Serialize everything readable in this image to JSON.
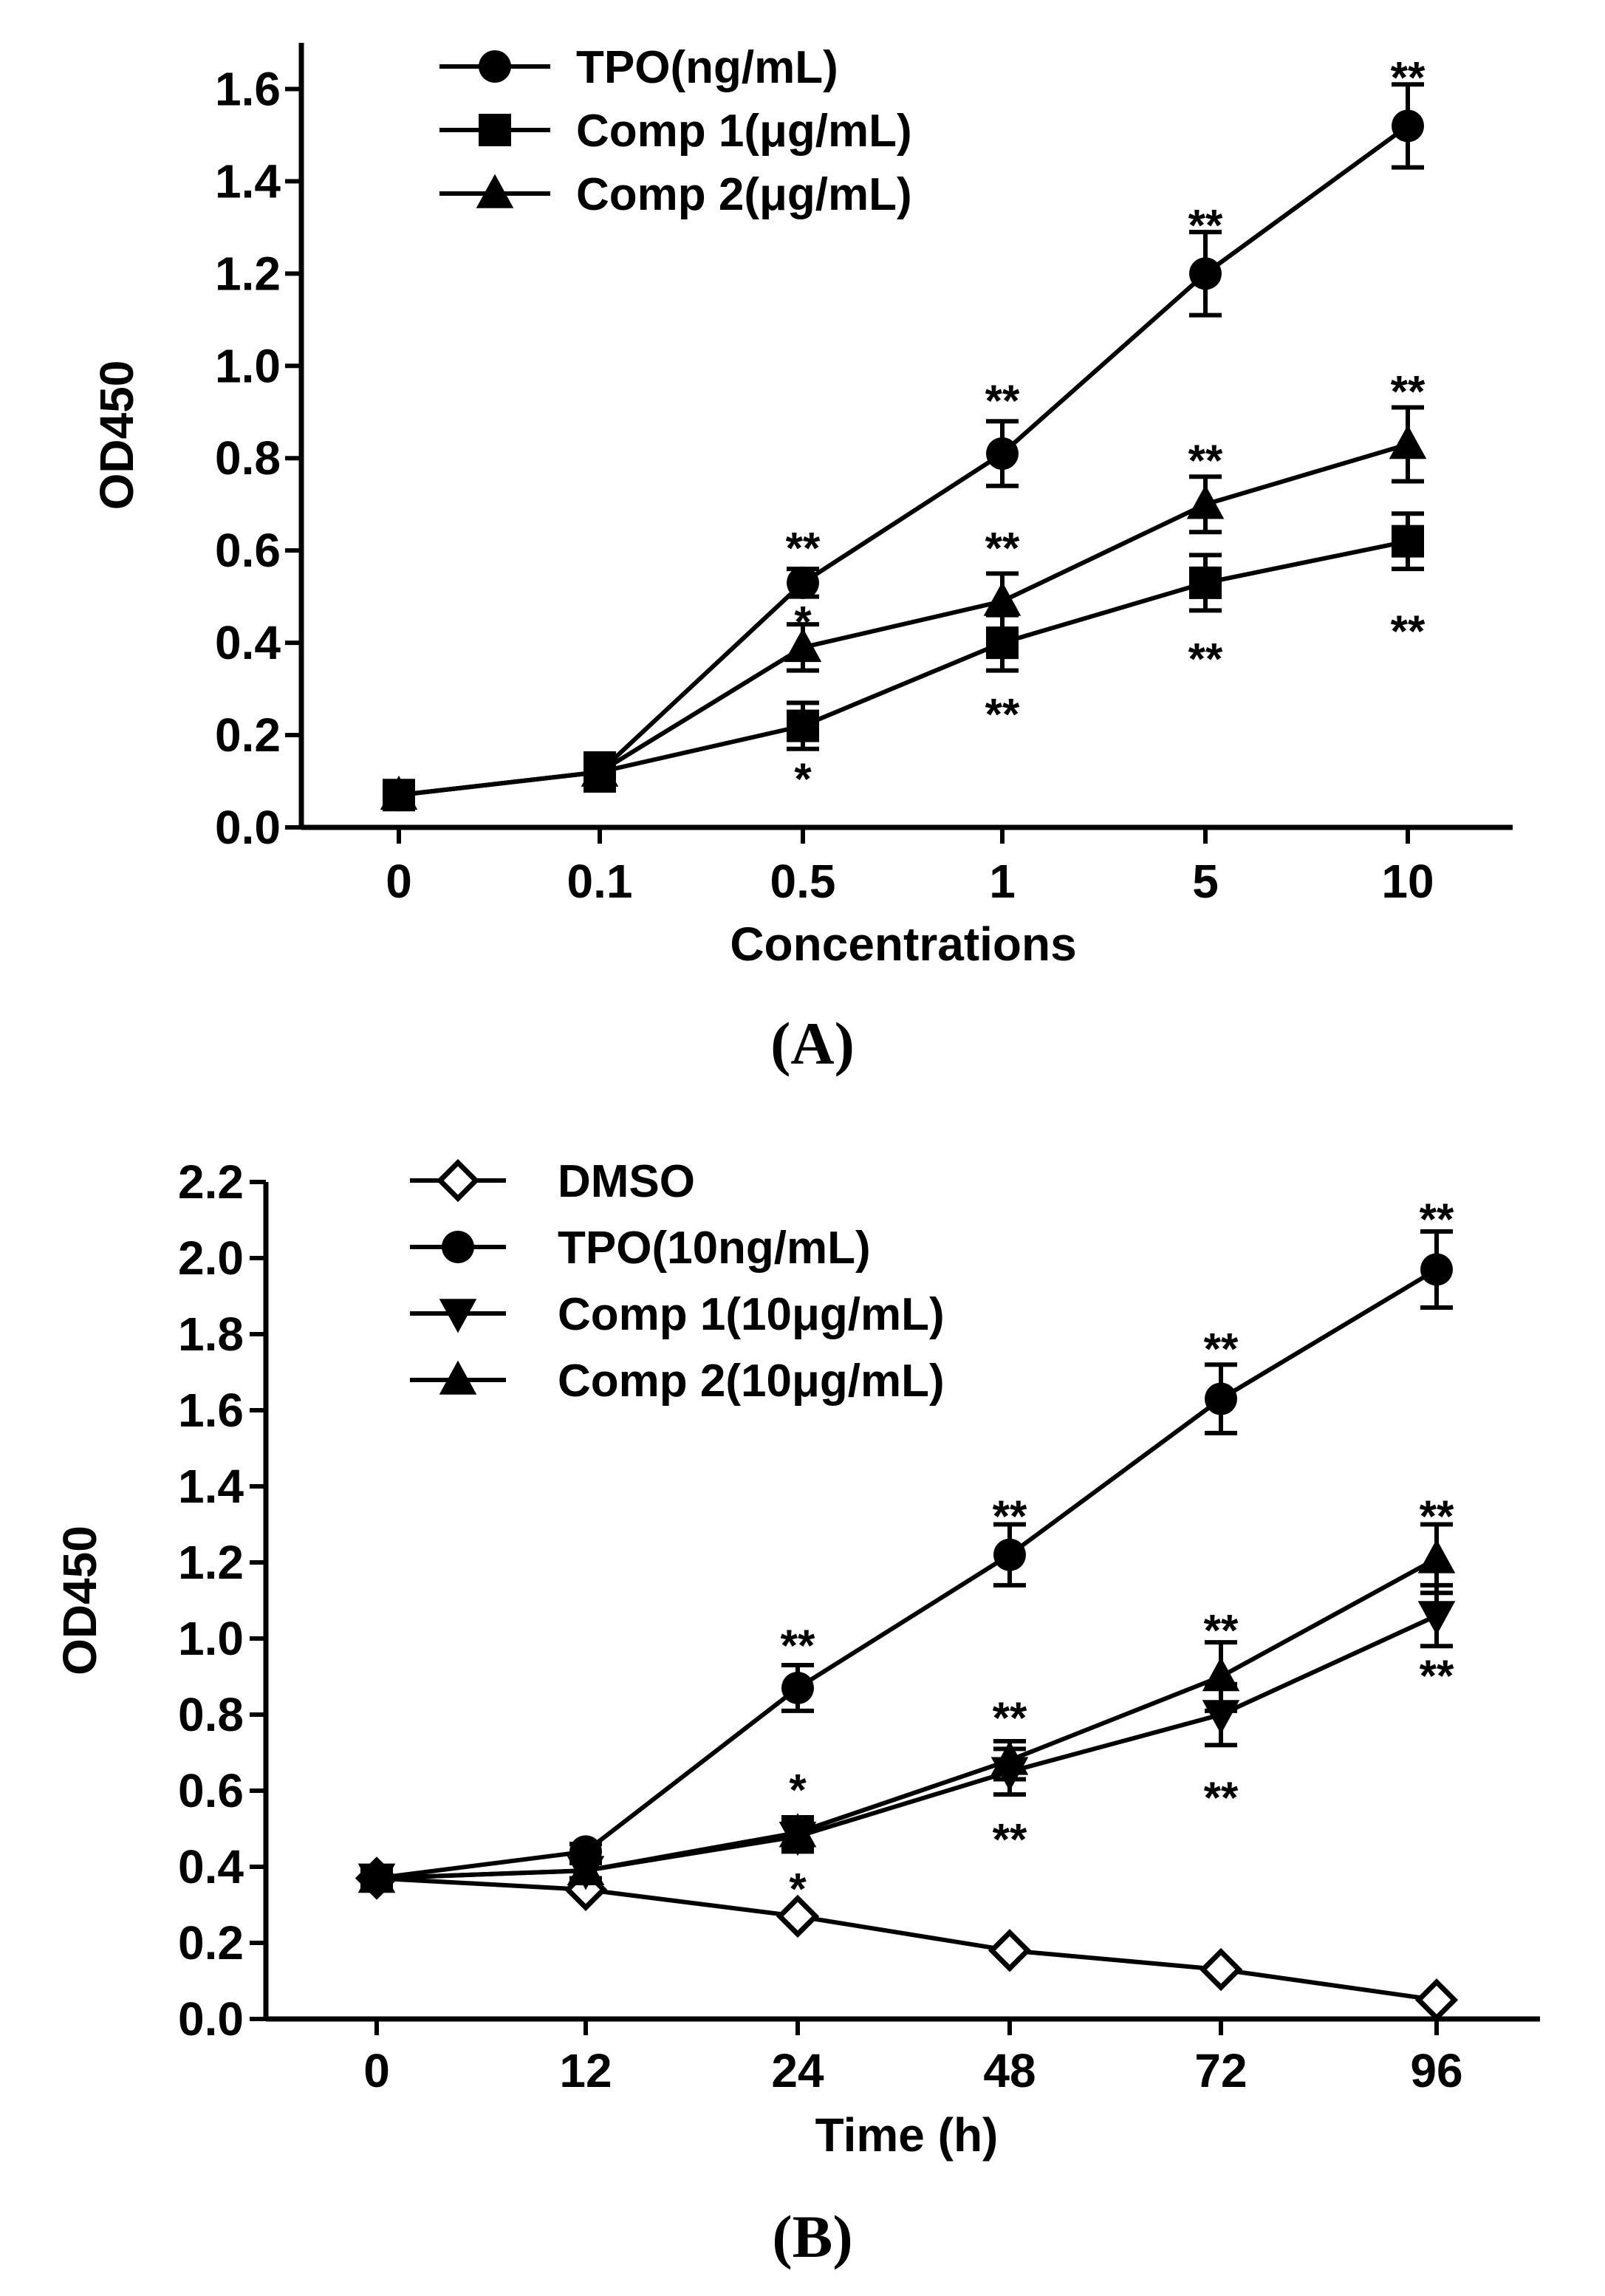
{
  "chart_data": [
    {
      "type": "line",
      "panel_label": "(A)",
      "xlabel": "Concentrations",
      "ylabel": "OD450",
      "categories": [
        "0",
        "0.1",
        "0.5",
        "1",
        "5",
        "10"
      ],
      "ylim": [
        0,
        1.7
      ],
      "yticks": [
        "0.0",
        "0.2",
        "0.4",
        "0.6",
        "0.8",
        "1.0",
        "1.2",
        "1.4",
        "1.6"
      ],
      "legend_position": "top-left",
      "series": [
        {
          "name": "TPO(ng/mL)",
          "marker": "circle",
          "values": [
            0.07,
            0.12,
            0.53,
            0.81,
            1.2,
            1.52
          ],
          "errors": [
            0.01,
            0.02,
            0.03,
            0.07,
            0.09,
            0.09
          ]
        },
        {
          "name": "Comp 1(μg/mL)",
          "marker": "square",
          "values": [
            0.07,
            0.12,
            0.22,
            0.4,
            0.53,
            0.62
          ],
          "errors": [
            0.01,
            0.04,
            0.05,
            0.06,
            0.06,
            0.06
          ]
        },
        {
          "name": "Comp 2(μg/mL)",
          "marker": "triangle-up",
          "values": [
            0.07,
            0.12,
            0.39,
            0.49,
            0.7,
            0.83
          ],
          "errors": [
            0.01,
            0.03,
            0.05,
            0.06,
            0.06,
            0.08
          ]
        }
      ],
      "annotations": [
        {
          "text": "**",
          "x": "0.5",
          "y": 0.62
        },
        {
          "text": "*",
          "x": "0.5",
          "y": 0.46
        },
        {
          "text": "*",
          "x": "0.5",
          "y": 0.12
        },
        {
          "text": "**",
          "x": "1",
          "y": 0.94
        },
        {
          "text": "**",
          "x": "1",
          "y": 0.62
        },
        {
          "text": "**",
          "x": "1",
          "y": 0.26
        },
        {
          "text": "**",
          "x": "5",
          "y": 1.32
        },
        {
          "text": "**",
          "x": "5",
          "y": 0.81
        },
        {
          "text": "**",
          "x": "5",
          "y": 0.38
        },
        {
          "text": "**",
          "x": "10",
          "y": 1.64
        },
        {
          "text": "**",
          "x": "10",
          "y": 0.96
        },
        {
          "text": "**",
          "x": "10",
          "y": 0.44
        }
      ]
    },
    {
      "type": "line",
      "panel_label": "(B)",
      "xlabel": "Time (h)",
      "ylabel": "OD450",
      "categories": [
        "0",
        "12",
        "24",
        "48",
        "72",
        "96"
      ],
      "ylim": [
        0,
        2.2
      ],
      "yticks": [
        "0.0",
        "0.2",
        "0.4",
        "0.6",
        "0.8",
        "1.0",
        "1.2",
        "1.4",
        "1.6",
        "1.8",
        "2.0",
        "2.2"
      ],
      "legend_position": "top-left",
      "series": [
        {
          "name": "DMSO",
          "marker": "diamond-open",
          "values": [
            0.37,
            0.34,
            0.27,
            0.18,
            0.13,
            0.05
          ],
          "errors": [
            0,
            0,
            0,
            0,
            0,
            0
          ]
        },
        {
          "name": "TPO(10ng/mL)",
          "marker": "circle",
          "values": [
            0.37,
            0.44,
            0.87,
            1.22,
            1.63,
            1.97
          ],
          "errors": [
            0.02,
            0.02,
            0.06,
            0.08,
            0.09,
            0.1
          ]
        },
        {
          "name": "Comp 1(10μg/mL)",
          "marker": "triangle-down",
          "values": [
            0.37,
            0.39,
            0.48,
            0.65,
            0.8,
            1.06
          ],
          "errors": [
            0.02,
            0.02,
            0.04,
            0.06,
            0.08,
            0.08
          ]
        },
        {
          "name": "Comp 2(10μg/mL)",
          "marker": "triangle-up",
          "values": [
            0.37,
            0.39,
            0.49,
            0.68,
            0.9,
            1.21
          ],
          "errors": [
            0.02,
            0.02,
            0.04,
            0.05,
            0.09,
            0.09
          ]
        }
      ],
      "annotations": [
        {
          "text": "**",
          "x": "24",
          "y": 1.0
        },
        {
          "text": "*",
          "x": "24",
          "y": 0.62
        },
        {
          "text": "*",
          "x": "24",
          "y": 0.36
        },
        {
          "text": "**",
          "x": "48",
          "y": 1.34
        },
        {
          "text": "**",
          "x": "48",
          "y": 0.81
        },
        {
          "text": "**",
          "x": "48",
          "y": 0.49
        },
        {
          "text": "**",
          "x": "72",
          "y": 1.78
        },
        {
          "text": "**",
          "x": "72",
          "y": 1.04
        },
        {
          "text": "**",
          "x": "72",
          "y": 0.6
        },
        {
          "text": "**",
          "x": "96",
          "y": 2.12
        },
        {
          "text": "**",
          "x": "96",
          "y": 1.34
        },
        {
          "text": "**",
          "x": "96",
          "y": 0.92
        }
      ]
    }
  ]
}
